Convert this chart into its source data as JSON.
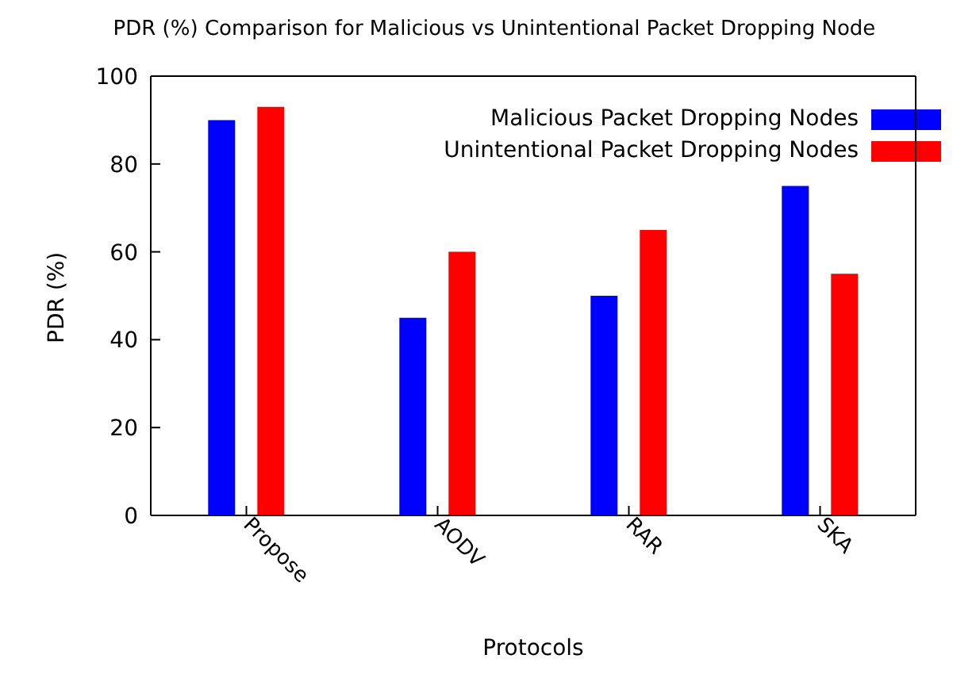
{
  "chart_data": {
    "type": "bar",
    "title": "PDR (%) Comparison for Malicious vs Unintentional Packet Dropping Node",
    "xlabel": "Protocols",
    "ylabel": "PDR (%)",
    "categories": [
      "Propose",
      "AODV",
      "RAR",
      "SKA"
    ],
    "series": [
      {
        "name": "Malicious Packet Dropping Nodes",
        "color": "#0000ff",
        "values": [
          90,
          45,
          50,
          75
        ]
      },
      {
        "name": "Unintentional Packet Dropping Nodes",
        "color": "#ff0000",
        "values": [
          93,
          60,
          65,
          55
        ]
      }
    ],
    "ylim": [
      0,
      100
    ],
    "yticks": [
      0,
      20,
      40,
      60,
      80,
      100
    ],
    "legend": "top right"
  }
}
